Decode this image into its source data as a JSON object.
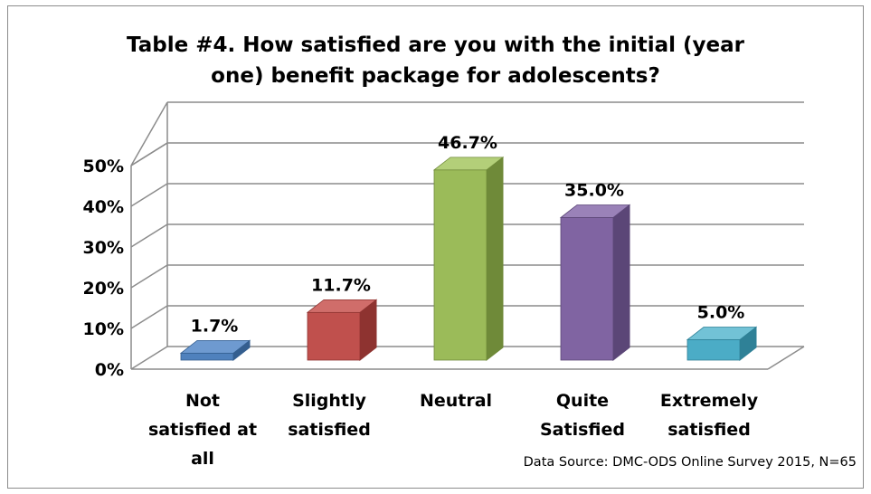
{
  "chart_data": {
    "type": "bar",
    "title_line1": "Table #4. How satisfied are you with the initial (year",
    "title_line2": "one) benefit package for adolescents?",
    "categories": [
      [
        "Not",
        "satisfied at",
        "all"
      ],
      [
        "Slightly",
        "satisfied"
      ],
      [
        "Neutral"
      ],
      [
        "Quite",
        "Satisfied"
      ],
      [
        "Extremely",
        "satisfied"
      ]
    ],
    "values": [
      1.7,
      11.7,
      46.7,
      35.0,
      5.0
    ],
    "data_labels": [
      "1.7%",
      "11.7%",
      "46.7%",
      "35.0%",
      "5.0%"
    ],
    "yticks": [
      "0%",
      "10%",
      "20%",
      "30%",
      "40%",
      "50%"
    ],
    "ylim": [
      0,
      50
    ],
    "grid": true,
    "three_d": true,
    "colors": [
      {
        "front": "#4f81bd",
        "side": "#345e8f",
        "top": "#6e9ad0"
      },
      {
        "front": "#c0504d",
        "side": "#8e3330",
        "top": "#d06d6a"
      },
      {
        "front": "#9bbb59",
        "side": "#6f8a39",
        "top": "#b3cf79"
      },
      {
        "front": "#8064a2",
        "side": "#5b4677",
        "top": "#9a82b8"
      },
      {
        "front": "#4bacc6",
        "side": "#2f8197",
        "top": "#72c2d6"
      }
    ],
    "source": "Data Source: DMC-ODS Online Survey 2015, N=65"
  }
}
